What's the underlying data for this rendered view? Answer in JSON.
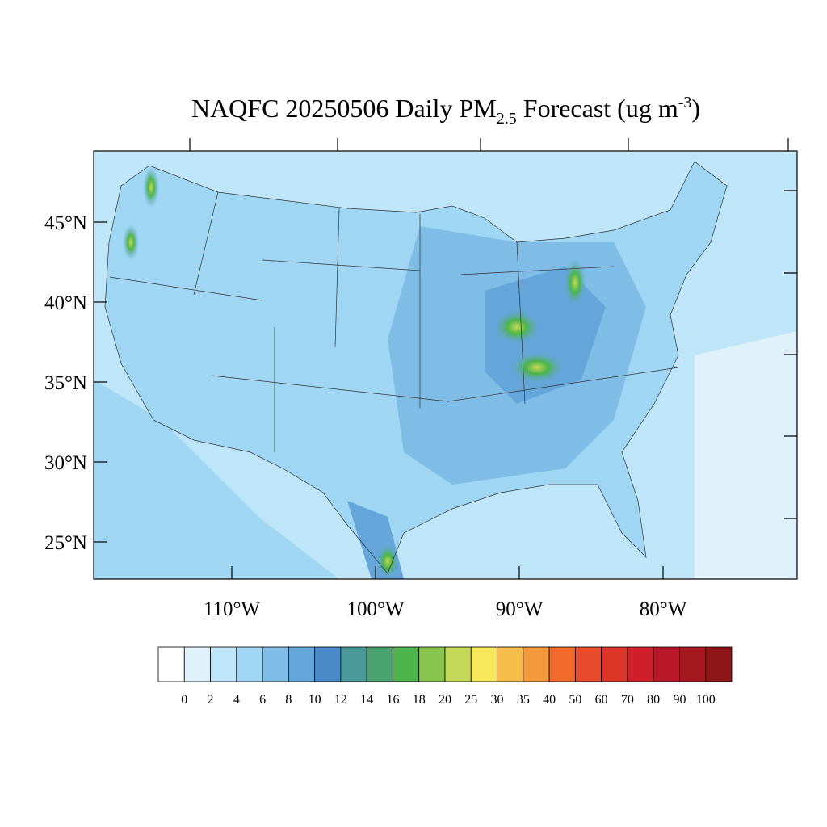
{
  "title": {
    "main": "NAQFC 20250506 Daily PM",
    "sub": "2.5",
    "mid": " Forecast (ug m",
    "sup": "-3",
    "end": ")"
  },
  "lat_ticks": [
    {
      "value": 45,
      "label": "45°N"
    },
    {
      "value": 40,
      "label": "40°N"
    },
    {
      "value": 35,
      "label": "35°N"
    },
    {
      "value": 30,
      "label": "30°N"
    },
    {
      "value": 25,
      "label": "25°N"
    }
  ],
  "lon_ticks": [
    {
      "value": -110,
      "label": "110°W"
    },
    {
      "value": -100,
      "label": "100°W"
    },
    {
      "value": -90,
      "label": "90°W"
    },
    {
      "value": -80,
      "label": "80°W"
    }
  ],
  "colorbar": {
    "levels": [
      0,
      2,
      4,
      6,
      8,
      10,
      12,
      14,
      16,
      18,
      20,
      25,
      30,
      35,
      40,
      50,
      60,
      70,
      80,
      90,
      100
    ],
    "colors": [
      "#ffffff",
      "#dff2fb",
      "#bfe6f8",
      "#9fd6f3",
      "#80bde6",
      "#64a6da",
      "#4a8ac9",
      "#4a9a9c",
      "#49a36f",
      "#4cb44a",
      "#88c54f",
      "#c4d95a",
      "#f7e75a",
      "#f7bd4a",
      "#f59a3c",
      "#f26b2c",
      "#e84b2c",
      "#dc3528",
      "#d01f2a",
      "#b8192a",
      "#a4171f",
      "#8e1618"
    ]
  }
}
